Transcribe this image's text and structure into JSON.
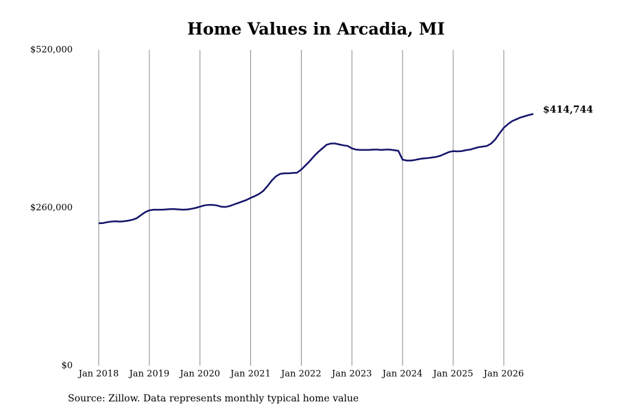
{
  "chart_data": {
    "type": "line",
    "title": "Home Values in Arcadia, MI",
    "source": "Source: Zillow. Data represents monthly typical home value",
    "x": [
      "2018-01",
      "2018-02",
      "2018-03",
      "2018-04",
      "2018-05",
      "2018-06",
      "2018-07",
      "2018-08",
      "2018-09",
      "2018-10",
      "2018-11",
      "2018-12",
      "2019-01",
      "2019-02",
      "2019-03",
      "2019-04",
      "2019-05",
      "2019-06",
      "2019-07",
      "2019-08",
      "2019-09",
      "2019-10",
      "2019-11",
      "2019-12",
      "2020-01",
      "2020-02",
      "2020-03",
      "2020-04",
      "2020-05",
      "2020-06",
      "2020-07",
      "2020-08",
      "2020-09",
      "2020-10",
      "2020-11",
      "2020-12",
      "2021-01",
      "2021-02",
      "2021-03",
      "2021-04",
      "2021-05",
      "2021-06",
      "2021-07",
      "2021-08",
      "2021-09",
      "2021-10",
      "2021-11",
      "2021-12",
      "2022-01",
      "2022-02",
      "2022-03",
      "2022-04",
      "2022-05",
      "2022-06",
      "2022-07",
      "2022-08",
      "2022-09",
      "2022-10",
      "2022-11",
      "2022-12",
      "2023-01",
      "2023-02",
      "2023-03",
      "2023-04",
      "2023-05",
      "2023-06",
      "2023-07",
      "2023-08",
      "2023-09",
      "2023-10",
      "2023-11",
      "2023-12",
      "2024-01",
      "2024-02",
      "2024-03",
      "2024-04",
      "2024-05",
      "2024-06",
      "2024-07",
      "2024-08",
      "2024-09",
      "2024-10",
      "2024-11",
      "2024-12",
      "2025-01",
      "2025-02",
      "2025-03",
      "2025-04",
      "2025-05",
      "2025-06",
      "2025-07",
      "2025-08",
      "2025-09",
      "2025-10",
      "2025-11",
      "2025-12",
      "2026-01",
      "2026-02",
      "2026-03",
      "2026-04",
      "2026-05",
      "2026-06",
      "2026-07",
      "2026-08"
    ],
    "series": [
      {
        "name": "Typical home value",
        "color": "#14146b",
        "values": [
          234600,
          235000,
          236500,
          237500,
          238000,
          237500,
          238000,
          239000,
          240500,
          243000,
          248000,
          253000,
          256000,
          257000,
          257000,
          257000,
          257500,
          258000,
          258000,
          257500,
          257000,
          257500,
          258500,
          260000,
          262000,
          264000,
          265000,
          265000,
          264000,
          262000,
          261500,
          263000,
          265500,
          268000,
          270500,
          273000,
          276500,
          279500,
          283000,
          288000,
          296000,
          305000,
          312000,
          316000,
          317000,
          317000,
          317500,
          318000,
          323000,
          330000,
          337000,
          345000,
          352000,
          358000,
          364000,
          366000,
          366000,
          364500,
          363000,
          362000,
          358000,
          356000,
          355500,
          355500,
          355500,
          356000,
          356000,
          355500,
          356000,
          356000,
          355000,
          354000,
          339500,
          338000,
          338000,
          339000,
          340500,
          341500,
          342000,
          343000,
          344000,
          346000,
          349000,
          352000,
          353500,
          353000,
          353500,
          355000,
          356000,
          358000,
          360000,
          361000,
          362000,
          366000,
          373000,
          383000,
          392000,
          398000,
          403000,
          406000,
          409000,
          411000,
          413000,
          414744
        ],
        "value_labels": [
          null,
          null,
          null,
          null,
          null,
          null,
          null,
          null,
          null,
          null,
          null,
          null,
          null,
          null,
          null,
          null,
          null,
          null,
          null,
          null,
          null,
          null,
          null,
          null,
          null,
          null,
          null,
          null,
          null,
          null,
          null,
          null,
          null,
          null,
          null,
          null,
          null,
          null,
          null,
          null,
          null,
          null,
          null,
          null,
          null,
          null,
          null,
          null,
          null,
          null,
          null,
          null,
          null,
          null,
          null,
          null,
          null,
          null,
          null,
          null,
          null,
          null,
          null,
          null,
          null,
          null,
          null,
          null,
          null,
          null,
          null,
          null,
          null,
          null,
          null,
          null,
          null,
          null,
          null,
          null,
          null,
          null,
          null,
          null,
          null,
          null,
          null,
          null,
          null,
          null,
          null,
          null,
          null,
          null,
          null,
          null,
          null,
          null,
          null,
          null,
          null,
          null,
          null,
          "$414,744"
        ]
      }
    ],
    "xlim": [
      "2018-01",
      "2026-08"
    ],
    "xticks": [
      {
        "value": "2018-01",
        "label": "Jan 2018"
      },
      {
        "value": "2019-01",
        "label": "Jan 2019"
      },
      {
        "value": "2020-01",
        "label": "Jan 2020"
      },
      {
        "value": "2021-01",
        "label": "Jan 2021"
      },
      {
        "value": "2022-01",
        "label": "Jan 2022"
      },
      {
        "value": "2023-01",
        "label": "Jan 2023"
      },
      {
        "value": "2024-01",
        "label": "Jan 2024"
      },
      {
        "value": "2025-01",
        "label": "Jan 2025"
      },
      {
        "value": "2026-01",
        "label": "Jan 2026"
      }
    ],
    "ylim": [
      0,
      520000
    ],
    "yticks": [
      {
        "value": 0,
        "label": "$0"
      },
      {
        "value": 260000,
        "label": "$260,000"
      },
      {
        "value": 520000,
        "label": "$520,000"
      }
    ],
    "grid": "x"
  }
}
